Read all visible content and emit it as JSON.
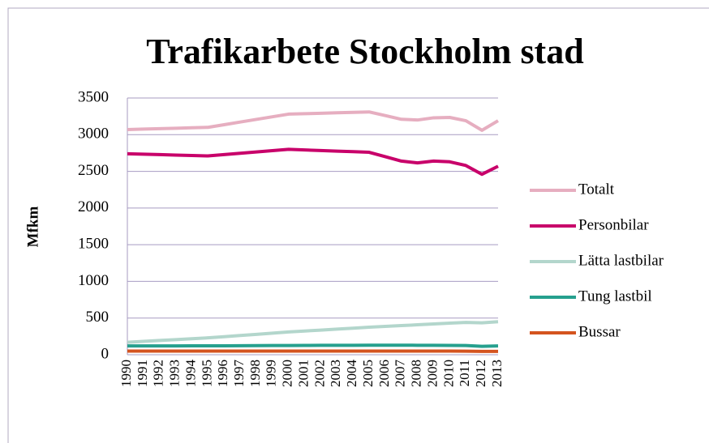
{
  "chart_data": {
    "type": "line",
    "title": "Trafikarbete Stockholm stad",
    "y_label": "Mfkm",
    "categories": [
      "1990",
      "1991",
      "1992",
      "1993",
      "1994",
      "1995",
      "1996",
      "1997",
      "1998",
      "1999",
      "2000",
      "2001",
      "2002",
      "2003",
      "2004",
      "2005",
      "2006",
      "2007",
      "2008",
      "2009",
      "2010",
      "2011",
      "2012",
      "2013"
    ],
    "series": [
      {
        "name": "Totalt",
        "color": "#e6aec0",
        "values": [
          3070,
          3076,
          3082,
          3088,
          3094,
          3100,
          3136,
          3172,
          3208,
          3244,
          3280,
          3286,
          3292,
          3298,
          3304,
          3310,
          3260,
          3210,
          3200,
          3230,
          3235,
          3190,
          3060,
          3190
        ]
      },
      {
        "name": "Personbilar",
        "color": "#c8006a",
        "values": [
          2740,
          2734,
          2728,
          2722,
          2716,
          2710,
          2728,
          2746,
          2764,
          2782,
          2800,
          2792,
          2784,
          2776,
          2768,
          2760,
          2700,
          2640,
          2615,
          2640,
          2630,
          2580,
          2460,
          2570
        ]
      },
      {
        "name": "Lätta lastbilar",
        "color": "#b3d6cc",
        "values": [
          170,
          182,
          194,
          206,
          218,
          230,
          246,
          262,
          278,
          294,
          310,
          323,
          336,
          349,
          362,
          375,
          386,
          397,
          408,
          419,
          430,
          440,
          435,
          450
        ]
      },
      {
        "name": "Tung lastbil",
        "color": "#26a08e",
        "values": [
          120,
          120,
          120,
          120,
          121,
          121,
          122,
          123,
          124,
          125,
          126,
          127,
          128,
          128,
          129,
          130,
          130,
          130,
          129,
          128,
          127,
          125,
          115,
          120
        ]
      },
      {
        "name": "Bussar",
        "color": "#d4541f",
        "values": [
          50,
          50,
          50,
          50,
          50,
          50,
          50,
          50,
          50,
          50,
          50,
          50,
          50,
          50,
          50,
          50,
          50,
          50,
          50,
          50,
          50,
          48,
          45,
          45
        ]
      }
    ],
    "ylim": [
      0,
      3500
    ],
    "yticks": [
      0,
      500,
      1000,
      1500,
      2000,
      2500,
      3000,
      3500
    ],
    "grid": true,
    "legend": "right"
  }
}
